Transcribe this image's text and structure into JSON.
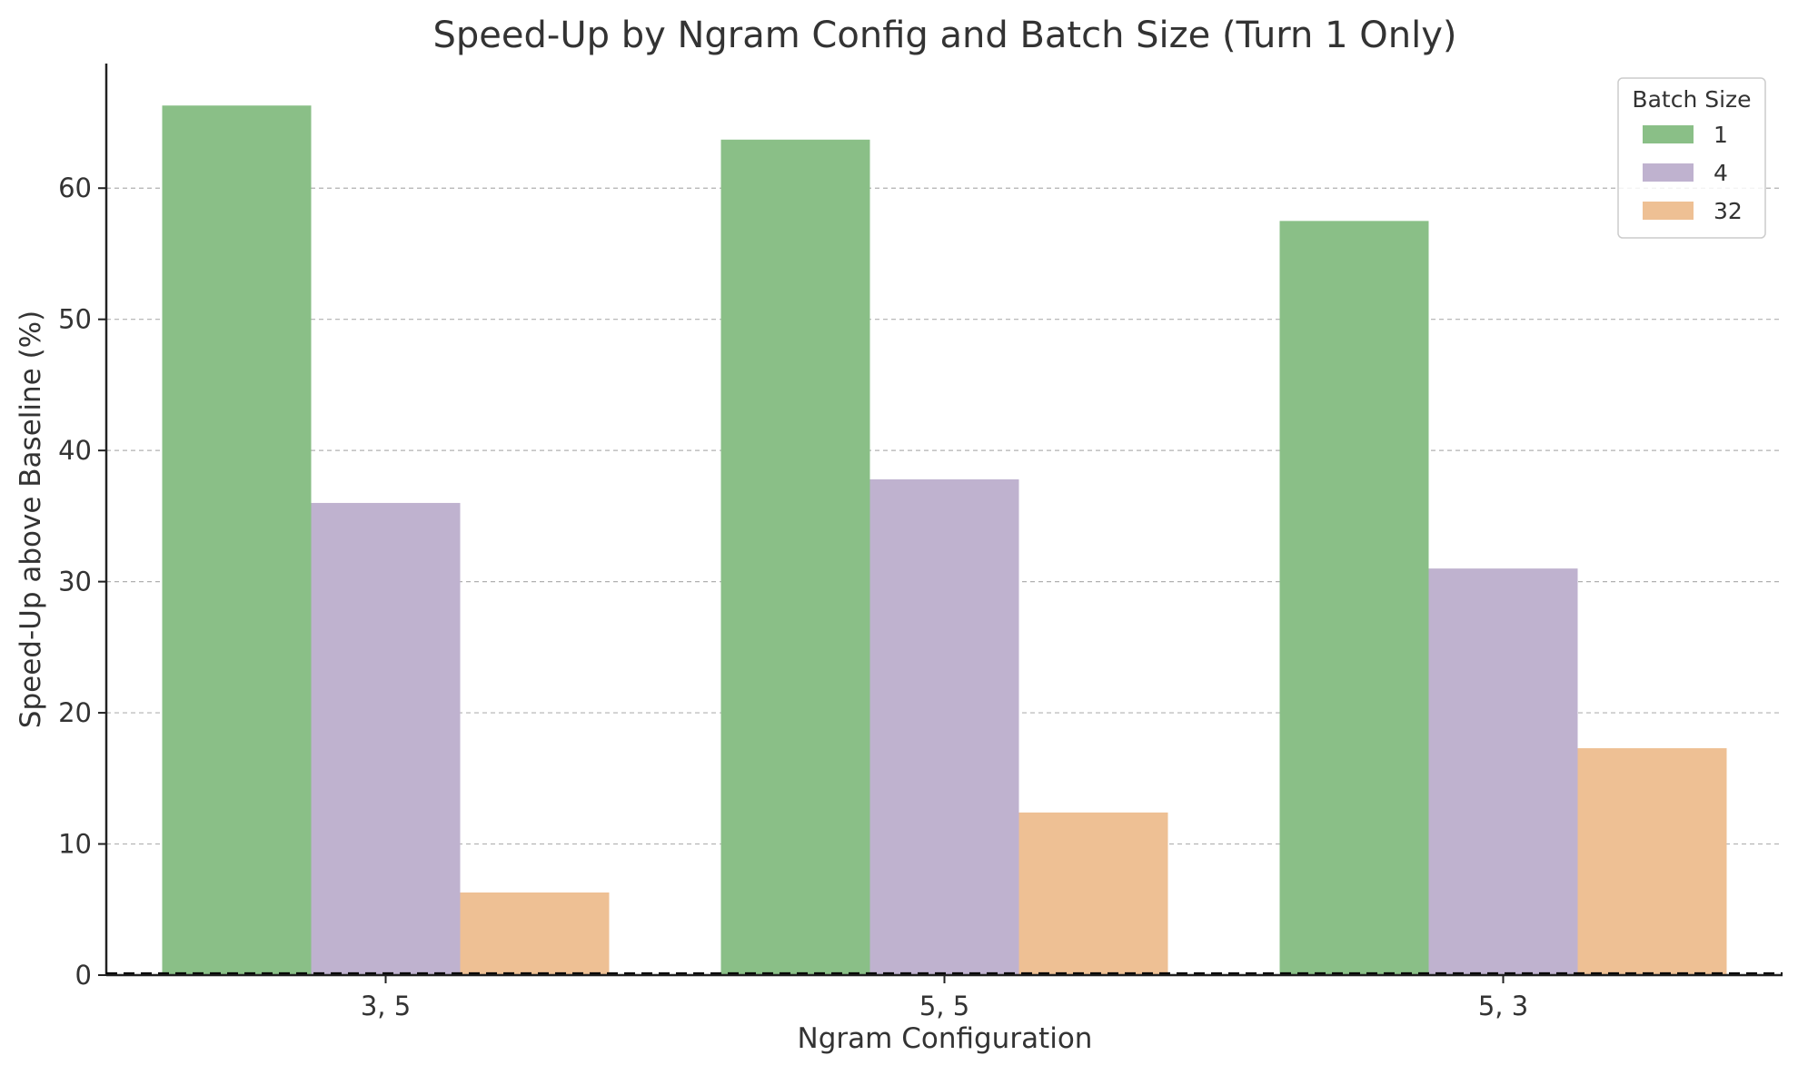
{
  "chart_data": {
    "type": "bar",
    "title": "Speed-Up by Ngram Config and Batch Size (Turn 1 Only)",
    "xlabel": "Ngram Configuration",
    "ylabel": "Speed-Up above Baseline (%)",
    "categories": [
      "3, 5",
      "5, 5",
      "5, 3"
    ],
    "series": [
      {
        "name": "1",
        "color": "#8abf87",
        "values": [
          66.3,
          63.7,
          57.5
        ]
      },
      {
        "name": "4",
        "color": "#bfb2cf",
        "values": [
          36.0,
          37.8,
          31.0
        ]
      },
      {
        "name": "32",
        "color": "#eec094",
        "values": [
          6.3,
          12.4,
          17.3
        ]
      }
    ],
    "ylim": [
      0,
      69.5
    ],
    "yticks": [
      0,
      10,
      20,
      30,
      40,
      50,
      60
    ],
    "grid": true,
    "reference_line": {
      "y": 0,
      "style": "dashed",
      "color": "#000000"
    },
    "legend": {
      "title": "Batch Size",
      "placement": "top-right"
    }
  }
}
